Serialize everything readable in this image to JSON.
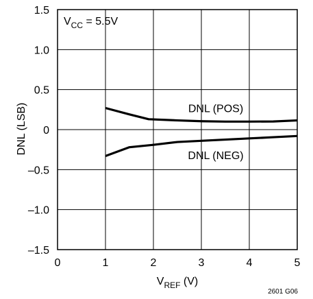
{
  "chart_data": {
    "type": "line",
    "title": "",
    "xlabel": {
      "main": "V",
      "sub": "REF",
      "suffix": " (V)"
    },
    "ylabel": "DNL (LSB)",
    "xlim": [
      0,
      5
    ],
    "ylim": [
      -1.5,
      1.5
    ],
    "x_ticks": [
      0,
      1,
      2,
      3,
      4,
      5
    ],
    "x_tick_labels": [
      "0",
      "1",
      "2",
      "3",
      "4",
      "5"
    ],
    "y_ticks": [
      -1.5,
      -1.0,
      -0.5,
      0,
      0.5,
      1.0,
      1.5
    ],
    "y_tick_labels": [
      "–1.5",
      "–1.0",
      "–0.5",
      "0",
      "0.5",
      "1.0",
      "1.5"
    ],
    "grid": true,
    "line_color": "#000000",
    "annotations": [
      {
        "main": "V",
        "sub": "CC",
        "suffix": " = 5.5V"
      }
    ],
    "series": [
      {
        "name": "DNL (POS)",
        "x": [
          1.0,
          1.5,
          1.9,
          2.5,
          3.0,
          3.5,
          4.0,
          4.5,
          5.0
        ],
        "y": [
          0.27,
          0.19,
          0.13,
          0.115,
          0.105,
          0.1,
          0.1,
          0.102,
          0.115
        ]
      },
      {
        "name": "DNL (NEG)",
        "x": [
          1.0,
          1.5,
          2.0,
          2.5,
          3.0,
          3.5,
          4.0,
          4.5,
          5.0
        ],
        "y": [
          -0.33,
          -0.22,
          -0.19,
          -0.155,
          -0.14,
          -0.125,
          -0.11,
          -0.095,
          -0.08
        ]
      }
    ]
  },
  "figure_id": "2601 G06"
}
